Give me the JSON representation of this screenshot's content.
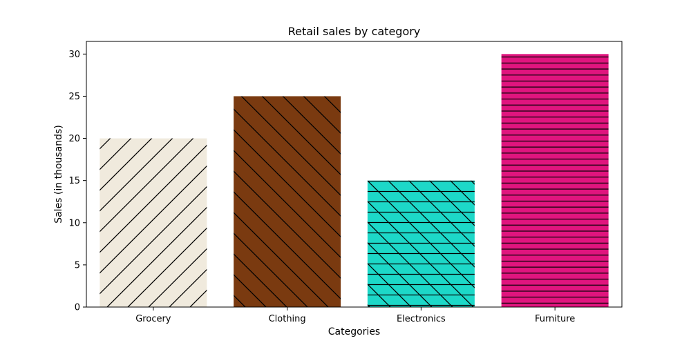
{
  "chart_data": {
    "type": "bar",
    "title": "Retail sales by category",
    "xlabel": "Categories",
    "ylabel": "Sales (in thousands)",
    "categories": [
      "Grocery",
      "Clothing",
      "Electronics",
      "Furniture"
    ],
    "values": [
      20,
      25,
      15,
      30
    ],
    "ylim": [
      0,
      31.5
    ],
    "yticks": [
      0,
      5,
      10,
      15,
      20,
      25,
      30
    ],
    "grid": false,
    "legend": "none",
    "bar_colors": [
      "#f0eadd",
      "#7a3a10",
      "#1dd8c8",
      "#e0157e"
    ],
    "hatches": [
      "/",
      "\\",
      "-\\",
      "-"
    ]
  }
}
